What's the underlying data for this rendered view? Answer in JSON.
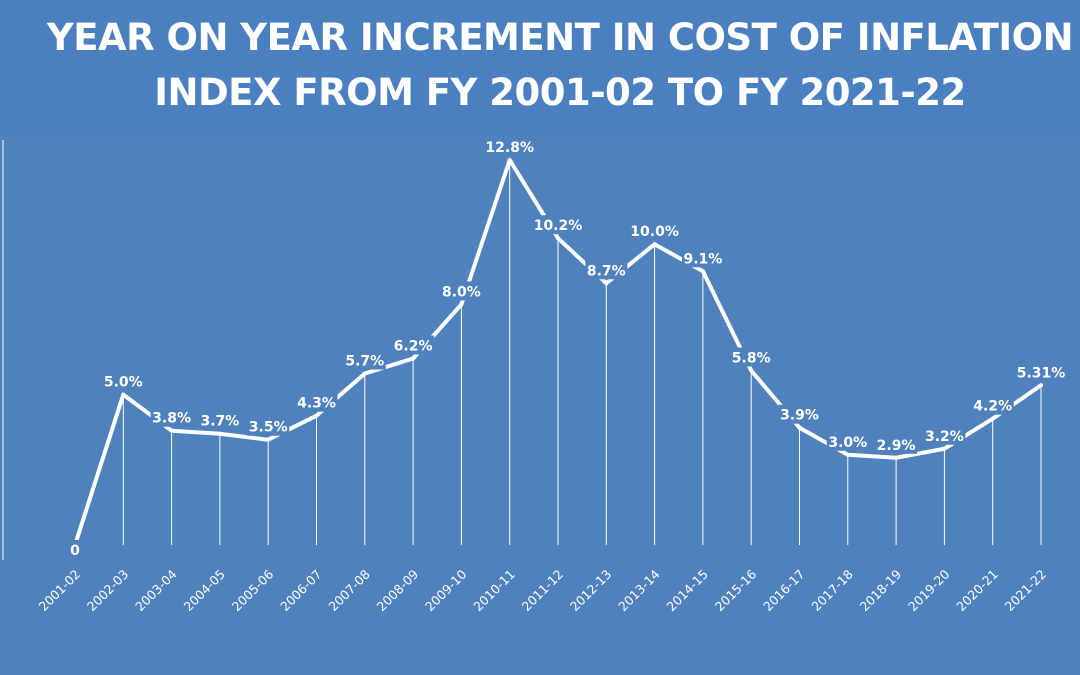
{
  "chart_data": {
    "type": "line",
    "title": "YEAR ON YEAR INCREMENT IN COST OF INFLATION INDEX FROM FY 2001-02 TO FY 2021-22",
    "xlabel": "",
    "ylabel": "",
    "categories": [
      "2001-02",
      "2002-03",
      "2003-04",
      "2004-05",
      "2005-06",
      "2006-07",
      "2007-08",
      "2008-09",
      "2009-10",
      "2010-11",
      "2011-12",
      "2012-13",
      "2013-14",
      "2014-15",
      "2015-16",
      "2016-17",
      "2017-18",
      "2018-19",
      "2019-20",
      "2020-21",
      "2021-22"
    ],
    "values": [
      0,
      5.0,
      3.8,
      3.7,
      3.5,
      4.3,
      5.7,
      6.2,
      8.0,
      12.8,
      10.2,
      8.7,
      10.0,
      9.1,
      5.8,
      3.9,
      3.0,
      2.9,
      3.2,
      4.2,
      5.31
    ],
    "data_labels": [
      "0",
      "5.0%",
      "3.8%",
      "3.7%",
      "3.5%",
      "4.3%",
      "5.7%",
      "6.2%",
      "8.0%",
      "12.8%",
      "10.2%",
      "8.7%",
      "10.0%",
      "9.1%",
      "5.8%",
      "3.9%",
      "3.0%",
      "2.9%",
      "3.2%",
      "4.2%",
      "5.31%"
    ],
    "ylim": [
      0,
      12.8
    ],
    "grid": false,
    "legend": "none",
    "colors": {
      "background": "#4f81bd",
      "line": "#ffffff",
      "text": "#ffffff"
    }
  }
}
